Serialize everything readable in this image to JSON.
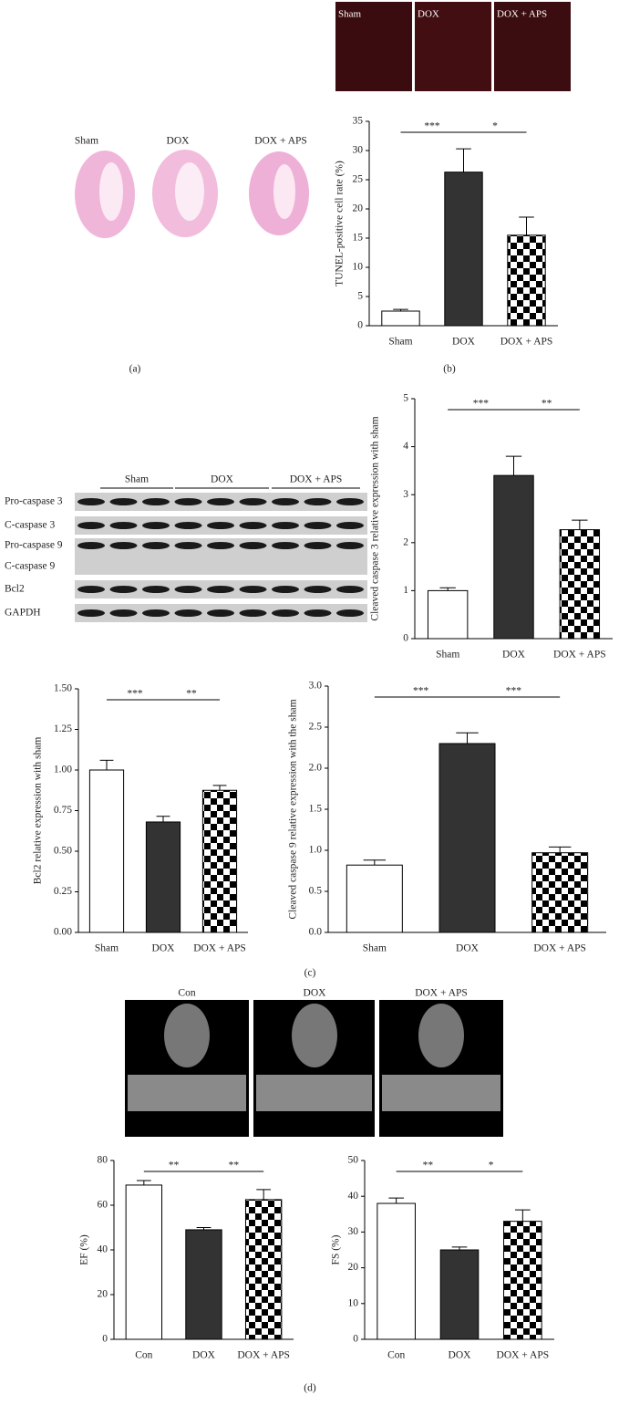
{
  "figure": {
    "panel_labels": [
      "(a)",
      "(b)",
      "(c)",
      "(d)"
    ],
    "tunel_images": [
      "Sham",
      "DOX",
      "DOX + APS"
    ],
    "he_images": [
      "Sham",
      "DOX",
      "DOX + APS"
    ],
    "blot": {
      "groups": [
        "Sham",
        "DOX",
        "DOX + APS"
      ],
      "rows": [
        "Pro-caspase 3",
        "C-caspase 3",
        "Pro-caspase 9",
        "C-caspase 9",
        "Bcl2",
        "GAPDH"
      ]
    },
    "echo_images": [
      "Con",
      "DOX",
      "DOX + APS"
    ]
  },
  "chart_data": [
    {
      "type": "bar",
      "ylabel": "TUNEL-positive cell rate (%)",
      "categories": [
        "Sham",
        "DOX",
        "DOX + APS"
      ],
      "values": [
        2.5,
        26.3,
        15.5
      ],
      "errors": [
        0.3,
        4,
        3.1
      ],
      "fills": [
        "#ffffff",
        "#333333",
        "checkerboard"
      ],
      "ylim": [
        0,
        35
      ],
      "yticks": [
        0,
        5,
        10,
        15,
        20,
        25,
        30,
        35
      ],
      "annotations": [
        {
          "text": "***",
          "between": [
            "Sham",
            "DOX"
          ]
        },
        {
          "text": "*",
          "between": [
            "DOX",
            "DOX + APS"
          ]
        }
      ]
    },
    {
      "type": "bar",
      "ylabel": "Cleaved caspase 3 relative expression with sham",
      "categories": [
        "Sham",
        "DOX",
        "DOX + APS"
      ],
      "values": [
        1.0,
        3.4,
        2.27
      ],
      "errors": [
        0.06,
        0.4,
        0.2
      ],
      "fills": [
        "#ffffff",
        "#333333",
        "checkerboard"
      ],
      "ylim": [
        0,
        5
      ],
      "yticks": [
        0,
        1,
        2,
        3,
        4,
        5
      ],
      "annotations": [
        {
          "text": "***",
          "between": [
            "Sham",
            "DOX"
          ]
        },
        {
          "text": "**",
          "between": [
            "DOX",
            "DOX + APS"
          ]
        }
      ]
    },
    {
      "type": "bar",
      "ylabel": "Bcl2 relative expression with sham",
      "categories": [
        "Sham",
        "DOX",
        "DOX + APS"
      ],
      "values": [
        1.0,
        0.68,
        0.875
      ],
      "errors": [
        0.06,
        0.035,
        0.03
      ],
      "fills": [
        "#ffffff",
        "#333333",
        "checkerboard"
      ],
      "ylim": [
        0,
        1.5
      ],
      "yticks": [
        {
          "value": 0,
          "label": "0.00"
        },
        0.25,
        {
          "value": 0.5,
          "label": "0.50"
        },
        0.75,
        {
          "value": 1,
          "label": "1.00"
        },
        1.25,
        {
          "value": 1.5,
          "label": "1.50"
        }
      ],
      "annotations": [
        {
          "text": "***",
          "between": [
            "Sham",
            "DOX"
          ]
        },
        {
          "text": "**",
          "between": [
            "DOX",
            "DOX + APS"
          ]
        }
      ]
    },
    {
      "type": "bar",
      "ylabel": "Cleaved caspase 9 relative expression with the sham",
      "categories": [
        "Sham",
        "DOX",
        "DOX + APS"
      ],
      "values": [
        0.82,
        2.3,
        0.97
      ],
      "errors": [
        0.06,
        0.13,
        0.07
      ],
      "fills": [
        "#ffffff",
        "#333333",
        "checkerboard"
      ],
      "ylim": [
        0,
        3
      ],
      "yticks": [
        {
          "value": 0,
          "label": "0.0"
        },
        0.5,
        {
          "value": 1,
          "label": "1.0"
        },
        1.5,
        {
          "value": 2,
          "label": "2.0"
        },
        2.5,
        {
          "value": 3,
          "label": "3.0"
        }
      ],
      "annotations": [
        {
          "text": "***",
          "between": [
            "Sham",
            "DOX"
          ]
        },
        {
          "text": "***",
          "between": [
            "DOX",
            "DOX + APS"
          ]
        }
      ]
    },
    {
      "type": "bar",
      "ylabel": "EF (%)",
      "categories": [
        "Con",
        "DOX",
        "DOX + APS"
      ],
      "values": [
        69,
        49,
        62.5
      ],
      "errors": [
        2,
        1,
        4.5
      ],
      "fills": [
        "#ffffff",
        "#333333",
        "checkerboard"
      ],
      "ylim": [
        0,
        80
      ],
      "yticks": [
        0,
        20,
        40,
        60,
        80
      ],
      "annotations": [
        {
          "text": "**",
          "between": [
            "Con",
            "DOX"
          ]
        },
        {
          "text": "**",
          "between": [
            "DOX",
            "DOX + APS"
          ]
        }
      ]
    },
    {
      "type": "bar",
      "ylabel": "FS (%)",
      "categories": [
        "Con",
        "DOX",
        "DOX + APS"
      ],
      "values": [
        38,
        25,
        33
      ],
      "errors": [
        1.5,
        0.8,
        3.2
      ],
      "fills": [
        "#ffffff",
        "#333333",
        "checkerboard"
      ],
      "ylim": [
        0,
        50
      ],
      "yticks": [
        0,
        10,
        20,
        30,
        40,
        50
      ],
      "annotations": [
        {
          "text": "**",
          "between": [
            "Con",
            "DOX"
          ]
        },
        {
          "text": "*",
          "between": [
            "DOX",
            "DOX + APS"
          ]
        }
      ]
    }
  ]
}
